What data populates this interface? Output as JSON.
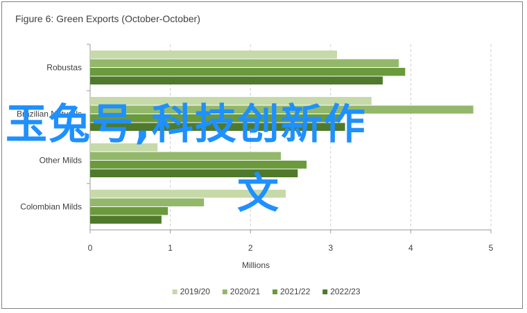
{
  "chart_data": {
    "type": "bar",
    "orientation": "horizontal",
    "title": "Figure 6: Green Exports (October-October)",
    "xlabel": "Millions",
    "ylabel": "",
    "xlim": [
      0,
      5
    ],
    "xticks": [
      0,
      1,
      2,
      3,
      4,
      5
    ],
    "grid": "vertical dashed",
    "legend_position": "bottom",
    "categories": [
      "Robustas",
      "Brazilian Naturals",
      "Other Milds",
      "Colombian Milds"
    ],
    "category_labels": [
      "Robustas",
      "Brazilian Naturals",
      "Other Milds",
      "Colombian Milds"
    ],
    "series": [
      {
        "name": "2019/20",
        "color": "#c6d9a8",
        "values": [
          3.08,
          3.51,
          0.84,
          2.44
        ]
      },
      {
        "name": "2020/21",
        "color": "#93b86b",
        "values": [
          3.85,
          4.78,
          2.38,
          1.42
        ]
      },
      {
        "name": "2021/22",
        "color": "#6a9a3c",
        "values": [
          3.93,
          3.12,
          2.7,
          0.97
        ]
      },
      {
        "name": "2022/23",
        "color": "#4f7a2b",
        "values": [
          3.65,
          3.18,
          2.59,
          0.89
        ]
      }
    ]
  },
  "overlay": {
    "line1": "玉兔号,科技创新作",
    "line2": "文"
  }
}
